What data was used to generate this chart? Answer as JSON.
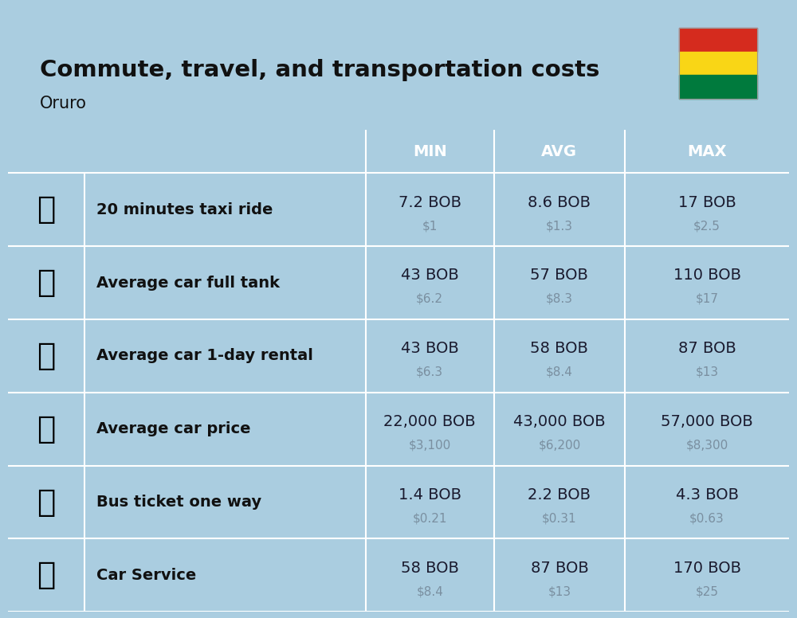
{
  "title": "Commute, travel, and transportation costs",
  "subtitle": "Oruro",
  "bg_color": "#aacde0",
  "header_bg": "#4e8bbf",
  "header_text_color": "#ffffff",
  "row_bg_even": "#c8dced",
  "row_bg_odd": "#b8cfe3",
  "col_headers": [
    "MIN",
    "AVG",
    "MAX"
  ],
  "rows": [
    {
      "label": "20 minutes taxi ride",
      "emoji": "🚕",
      "min_bob": "7.2 BOB",
      "min_usd": "$1",
      "avg_bob": "8.6 BOB",
      "avg_usd": "$1.3",
      "max_bob": "17 BOB",
      "max_usd": "$2.5"
    },
    {
      "label": "Average car full tank",
      "emoji": "⛽",
      "min_bob": "43 BOB",
      "min_usd": "$6.2",
      "avg_bob": "57 BOB",
      "avg_usd": "$8.3",
      "max_bob": "110 BOB",
      "max_usd": "$17"
    },
    {
      "label": "Average car 1-day rental",
      "emoji": "🚙",
      "min_bob": "43 BOB",
      "min_usd": "$6.3",
      "avg_bob": "58 BOB",
      "avg_usd": "$8.4",
      "max_bob": "87 BOB",
      "max_usd": "$13"
    },
    {
      "label": "Average car price",
      "emoji": "🚗",
      "min_bob": "22,000 BOB",
      "min_usd": "$3,100",
      "avg_bob": "43,000 BOB",
      "avg_usd": "$6,200",
      "max_bob": "57,000 BOB",
      "max_usd": "$8,300"
    },
    {
      "label": "Bus ticket one way",
      "emoji": "🚌",
      "min_bob": "1.4 BOB",
      "min_usd": "$0.21",
      "avg_bob": "2.2 BOB",
      "avg_usd": "$0.31",
      "max_bob": "4.3 BOB",
      "max_usd": "$0.63"
    },
    {
      "label": "Car Service",
      "emoji": "🚗",
      "min_bob": "58 BOB",
      "min_usd": "$8.4",
      "avg_bob": "87 BOB",
      "avg_usd": "$13",
      "max_bob": "170 BOB",
      "max_usd": "$25"
    }
  ],
  "flag_colors": [
    "#d52b1e",
    "#f9d616",
    "#007a3d"
  ],
  "title_fontsize": 21,
  "subtitle_fontsize": 15,
  "bob_fontsize": 14,
  "usd_fontsize": 11,
  "label_fontsize": 14,
  "header_fontsize": 14
}
